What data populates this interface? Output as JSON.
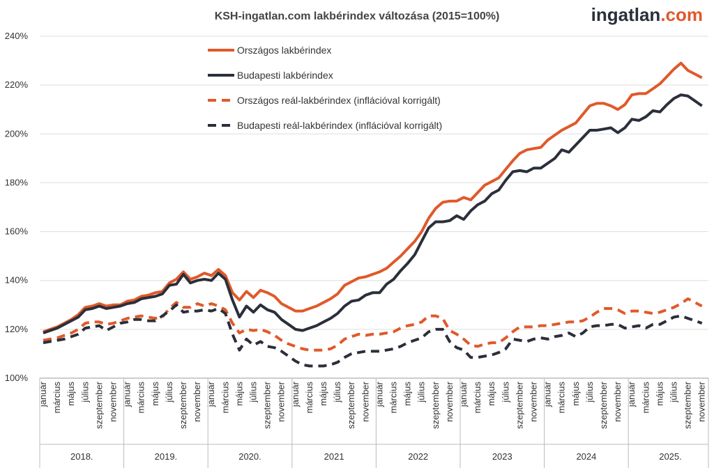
{
  "chart_data": {
    "type": "line",
    "title": "KSH-ingatlan.com lakbérindex változása (2015=100%)",
    "logo": {
      "name": "ingatlan",
      "suffix": ".com"
    },
    "categories": [
      "január",
      null,
      "március",
      null,
      "május",
      null,
      "július",
      null,
      "szeptember",
      null,
      "november",
      null,
      "január",
      null,
      "március",
      null,
      "május",
      null,
      "július",
      null,
      "szeptember",
      null,
      "november",
      null,
      "január",
      null,
      "március",
      null,
      "május",
      null,
      "július",
      null,
      "szeptember",
      null,
      "november",
      null,
      "január",
      null,
      "március",
      null,
      "május",
      null,
      "július",
      null,
      "szeptember",
      null,
      "november",
      null,
      "január",
      null,
      "március",
      null,
      "május",
      null,
      "július",
      null,
      "szeptember",
      null,
      "november",
      null,
      "január",
      null,
      "március",
      null,
      "május",
      null,
      "július",
      null,
      "szeptember",
      null,
      "november",
      null,
      "január",
      null,
      "március",
      null,
      "május",
      null,
      "július",
      null,
      "szeptember",
      null,
      "november",
      null,
      "január",
      null,
      "március",
      null,
      "május",
      null,
      "július",
      null,
      "szeptember",
      null,
      "november"
    ],
    "years": [
      "2018.",
      "2019.",
      "2020.",
      "2021",
      "2022",
      "2023",
      "2024",
      "2025."
    ],
    "ylim": [
      100,
      240
    ],
    "yticks": [
      {
        "value": 100,
        "label": "100%"
      },
      {
        "value": 120,
        "label": "120%"
      },
      {
        "value": 140,
        "label": "140%"
      },
      {
        "value": 160,
        "label": "160%"
      },
      {
        "value": 180,
        "label": "180%"
      },
      {
        "value": 200,
        "label": "200%"
      },
      {
        "value": 220,
        "label": "220%"
      },
      {
        "value": 240,
        "label": "240%"
      }
    ],
    "grid": true,
    "series": [
      {
        "name": "Országos lakbérindex",
        "color": "#e0592a",
        "style": "solid",
        "values": [
          119,
          120,
          121,
          122.5,
          124,
          126,
          129,
          129.5,
          130.5,
          129.5,
          130,
          130,
          131.5,
          132,
          133.5,
          134,
          135,
          135.5,
          139,
          140.5,
          143.5,
          140.5,
          141.5,
          143,
          142,
          144.5,
          142,
          135,
          132,
          135.5,
          133,
          136,
          135,
          133.5,
          130.5,
          129,
          127.5,
          127.5,
          128.5,
          129.5,
          131,
          132.5,
          134.5,
          138,
          139.5,
          141,
          141.5,
          142.5,
          143.5,
          145,
          147.5,
          150,
          153,
          156,
          160,
          165.5,
          169.5,
          172,
          172.5,
          172.5,
          174,
          173,
          176,
          179,
          180.5,
          182,
          185.5,
          189,
          192,
          193.5,
          194,
          194.5,
          197.5,
          199.5,
          201.5,
          203,
          204.5,
          208,
          211.5,
          212.5,
          212.5,
          211.5,
          210,
          212,
          216,
          216.5,
          216.5,
          218.5,
          220.5,
          223.5,
          226.5,
          229,
          226,
          224.5,
          223
        ]
      },
      {
        "name": "Budapesti lakbérindex",
        "color": "#2b2f3a",
        "style": "solid",
        "values": [
          118.5,
          119.5,
          120.5,
          122,
          123.5,
          125,
          128,
          128.5,
          129.5,
          128.5,
          129,
          129.5,
          130.5,
          131,
          132.5,
          133,
          133.5,
          134.5,
          138,
          138.5,
          142.5,
          139,
          140,
          140.5,
          140,
          143,
          140.5,
          132,
          125,
          129.5,
          127,
          130,
          128,
          127,
          124,
          122,
          120,
          119.5,
          120.5,
          121.5,
          123,
          124.5,
          126.5,
          129.5,
          131.5,
          132,
          134,
          135,
          135,
          138.5,
          140.5,
          144,
          147,
          150.5,
          156,
          161.5,
          164,
          164,
          164.5,
          166.5,
          165,
          168.5,
          171,
          172.5,
          175.5,
          177,
          181,
          184.5,
          185,
          184.5,
          186,
          186,
          188,
          190,
          193.5,
          192.5,
          195.5,
          198.5,
          201.5,
          201.5,
          202,
          202.5,
          200.5,
          202.5,
          206,
          205.5,
          207,
          209.5,
          209,
          212,
          214.5,
          216,
          215.5,
          213.5,
          211.5
        ]
      },
      {
        "name": "Országos reál-lakbérindex (inflációval korrigált)",
        "color": "#e0592a",
        "style": "dashed",
        "values": [
          115.5,
          116,
          116.5,
          117.5,
          118.5,
          120,
          122.5,
          123,
          123,
          122,
          122.5,
          123.5,
          124.5,
          125,
          125.5,
          125,
          124.5,
          125,
          128.5,
          131,
          129,
          129,
          130.5,
          129.5,
          130.5,
          129.5,
          128,
          122.5,
          118.5,
          120,
          119.5,
          120,
          119,
          117.5,
          115.5,
          114,
          113,
          112,
          111.5,
          111.5,
          111.5,
          112,
          113.5,
          116,
          117,
          118,
          117.5,
          118,
          118,
          118.5,
          119,
          120.5,
          121.5,
          122,
          123,
          125.5,
          125.5,
          124.5,
          119.5,
          118,
          116,
          113.5,
          113,
          114,
          114.5,
          114.5,
          116.5,
          119,
          121,
          121,
          121,
          121.5,
          121.5,
          122,
          122.5,
          123,
          123,
          123.5,
          125,
          127,
          128.5,
          128.5,
          128,
          126.5,
          127.5,
          127.5,
          127,
          126.5,
          127,
          128,
          129,
          130.5,
          132.5,
          131,
          129.5
        ]
      },
      {
        "name": "Budapesti reál-lakbérindex (inflációval korrigált)",
        "color": "#2b2f3a",
        "style": "dashed",
        "values": [
          114.5,
          115,
          115.5,
          116,
          117,
          118,
          120.5,
          121,
          121.5,
          119.5,
          121,
          122.5,
          123,
          124,
          124,
          123.5,
          123.5,
          125.5,
          127.5,
          130,
          127,
          127.5,
          127.5,
          128,
          127.5,
          128.5,
          126.5,
          118,
          111.5,
          116,
          113.5,
          115,
          113,
          112.5,
          111,
          109,
          107,
          105.5,
          105,
          105,
          105,
          105.5,
          106.5,
          108.5,
          110,
          110.5,
          111,
          111,
          111,
          111.5,
          112,
          113,
          114.5,
          115.5,
          116.5,
          119,
          120,
          120,
          115,
          112.5,
          111.5,
          108.5,
          108.5,
          109,
          109.5,
          110.5,
          112,
          116,
          115.5,
          115,
          116,
          116.5,
          116,
          117,
          117.5,
          118.5,
          117,
          118.5,
          121,
          121.5,
          121.5,
          122,
          122,
          120.5,
          121,
          121.5,
          120.5,
          122,
          122,
          123.5,
          125,
          125.5,
          124.5,
          123.5,
          122.5
        ]
      }
    ]
  }
}
